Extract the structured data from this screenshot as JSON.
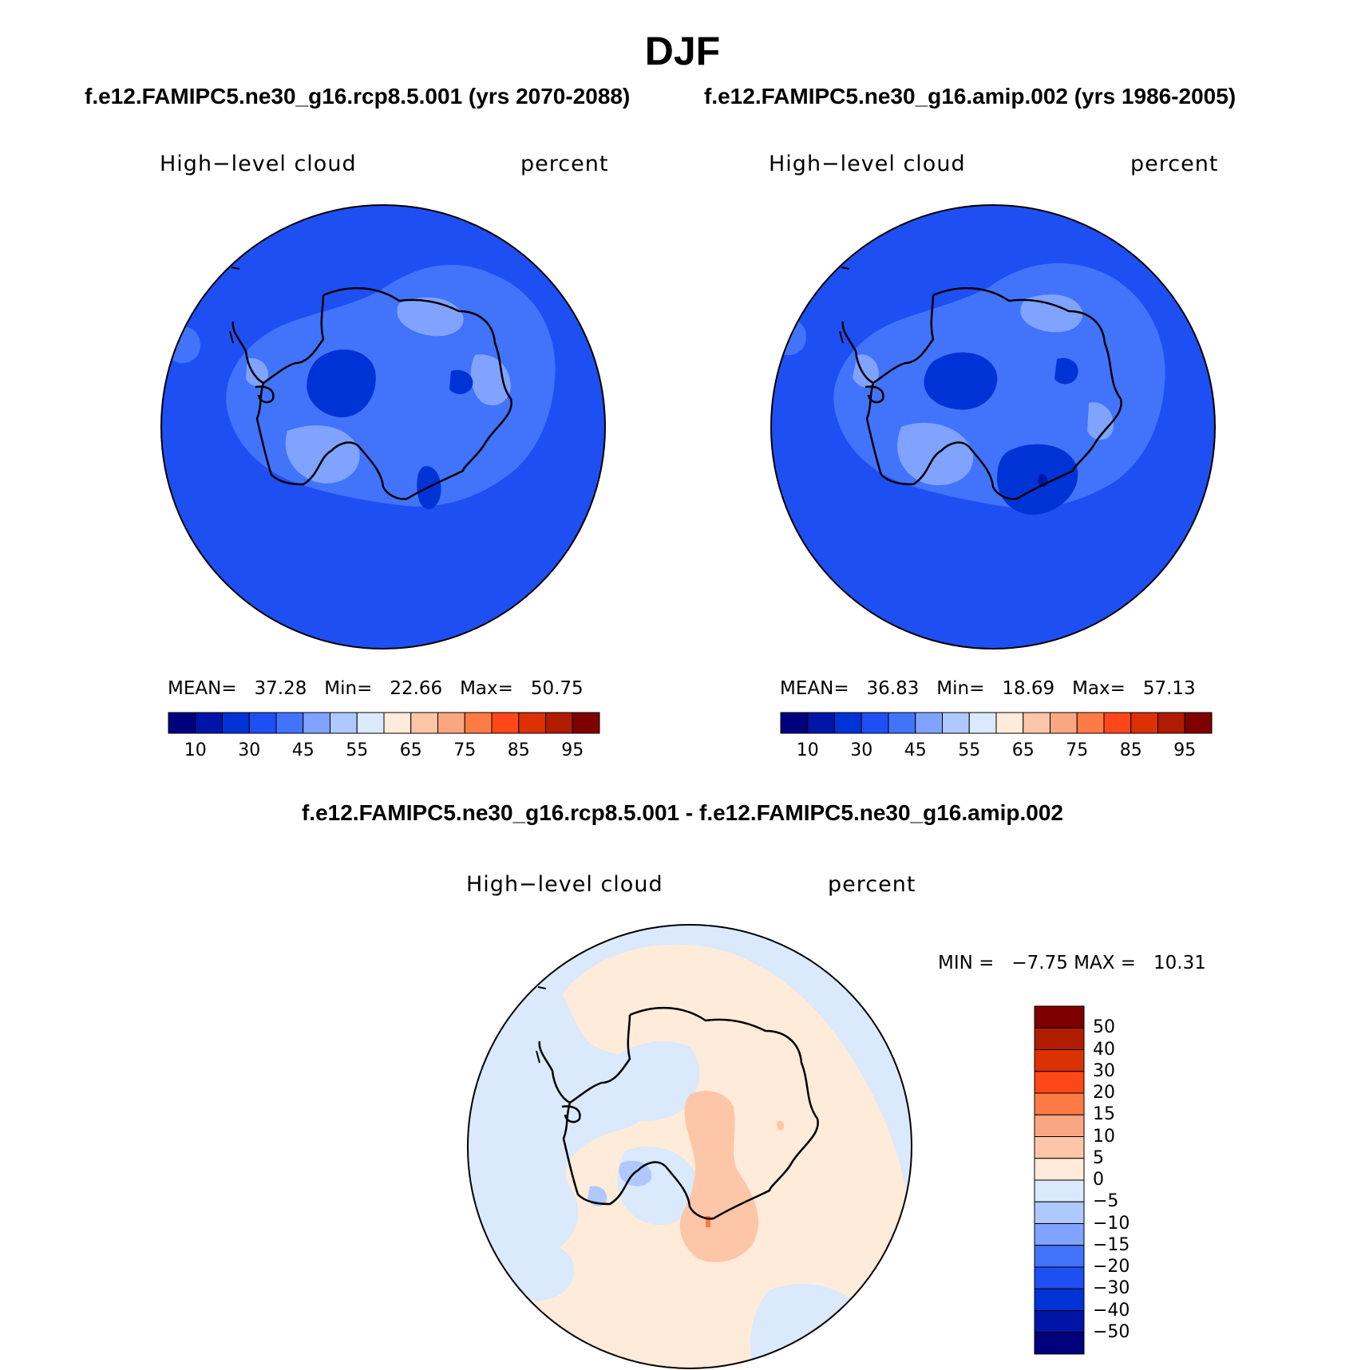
{
  "figure": {
    "season": "DJF",
    "case_a_title": "f.e12.FAMIPC5.ne30_g16.rcp8.5.001 (yrs 2070-2088)",
    "case_b_title": "f.e12.FAMIPC5.ne30_g16.amip.002 (yrs 1986-2005)",
    "diff_title": "f.e12.FAMIPC5.ne30_g16.rcp8.5.001 - f.e12.FAMIPC5.ne30_g16.amip.002"
  },
  "panels": [
    {
      "variable": "High−level cloud",
      "units": "percent",
      "stats_text": "MEAN=   37.28   Min=   22.66   Max=   50.75"
    },
    {
      "variable": "High−level cloud",
      "units": "percent",
      "stats_text": "MEAN=   36.83   Min=   18.69   Max=   57.13"
    }
  ],
  "diff_panel": {
    "variable": "High−level cloud",
    "units": "percent",
    "stats_text": "MIN =   −7.75 MAX =   10.31"
  },
  "colorbar_abs": {
    "colors": [
      "#00007f",
      "#0015a8",
      "#0033d6",
      "#1e4ff2",
      "#4273fb",
      "#7fa3ff",
      "#afc8fd",
      "#dae9fb",
      "#feebd9",
      "#fdc6a8",
      "#fba682",
      "#ff7b46",
      "#ff4719",
      "#dc3104",
      "#b01c00",
      "#7e0000"
    ],
    "labels": [
      "10",
      "30",
      "45",
      "55",
      "65",
      "75",
      "85",
      "95"
    ]
  },
  "colorbar_diff": {
    "colors": [
      "#7e0000",
      "#b01c00",
      "#dc3104",
      "#ff4719",
      "#ff7b46",
      "#fba682",
      "#fdc6a8",
      "#feebd9",
      "#dae9fb",
      "#afc8fd",
      "#7fa3ff",
      "#4273fb",
      "#1e4ff2",
      "#0033d6",
      "#0015a8",
      "#00007f"
    ],
    "labels": [
      "50",
      "40",
      "30",
      "20",
      "15",
      "10",
      "5",
      "0",
      "−5",
      "−10",
      "−15",
      "−20",
      "−30",
      "−40",
      "−50"
    ]
  },
  "map_colors": {
    "ocean_abs": "#1e4ff2",
    "level_45": "#4273fb",
    "level_55": "#7fa3ff",
    "level_30": "#0033d6",
    "level_10": "#0015a8",
    "diff_pos_small": "#feebd9",
    "diff_neg_small": "#dae9fb",
    "diff_pos_mid": "#fdc6a8",
    "diff_neg_mid": "#afc8fd",
    "diff_neg_more": "#7fa3ff",
    "diff_pos_more": "#ff7b46"
  }
}
